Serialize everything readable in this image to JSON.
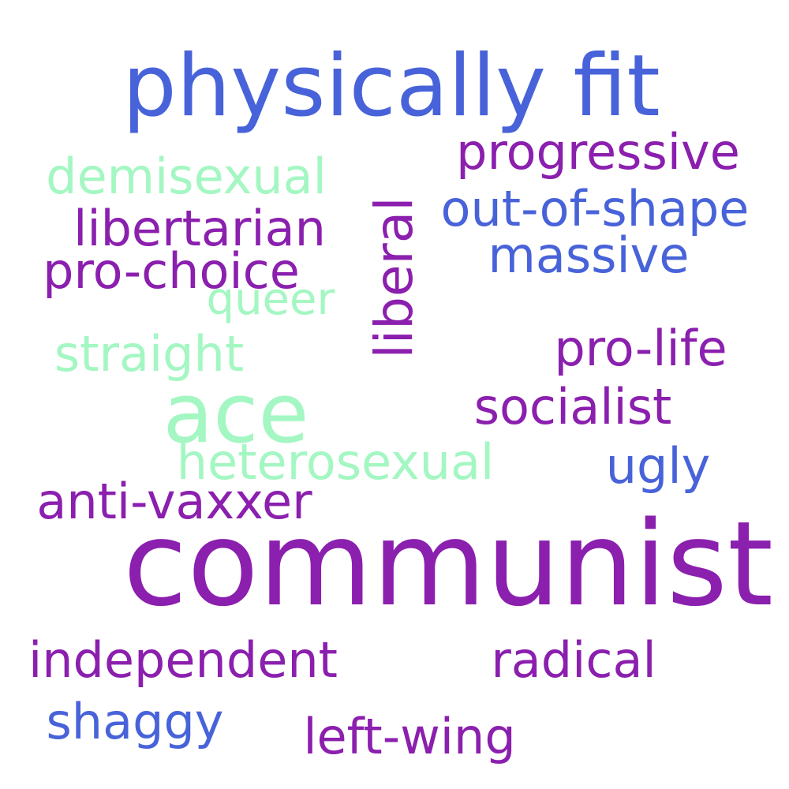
{
  "colors": {
    "blue": "#4863d9",
    "purple": "#8b1fae",
    "mint": "#a4f7c2"
  },
  "words": {
    "physically_fit": "physically fit",
    "progressive": "progressive",
    "demisexual": "demisexual",
    "liberal": "liberal",
    "out_of_shape": "out-of-shape",
    "libertarian": "libertarian",
    "massive": "massive",
    "pro_choice": "pro-choice",
    "queer": "queer",
    "pro_life": "pro-life",
    "straight": "straight",
    "ace": "ace",
    "socialist": "socialist",
    "heterosexual": "heterosexual",
    "ugly": "ugly",
    "anti_vaxxer": "anti-vaxxer",
    "communist": "communist",
    "independent": "independent",
    "radical": "radical",
    "shaggy": "shaggy",
    "left_wing": "left-wing"
  }
}
